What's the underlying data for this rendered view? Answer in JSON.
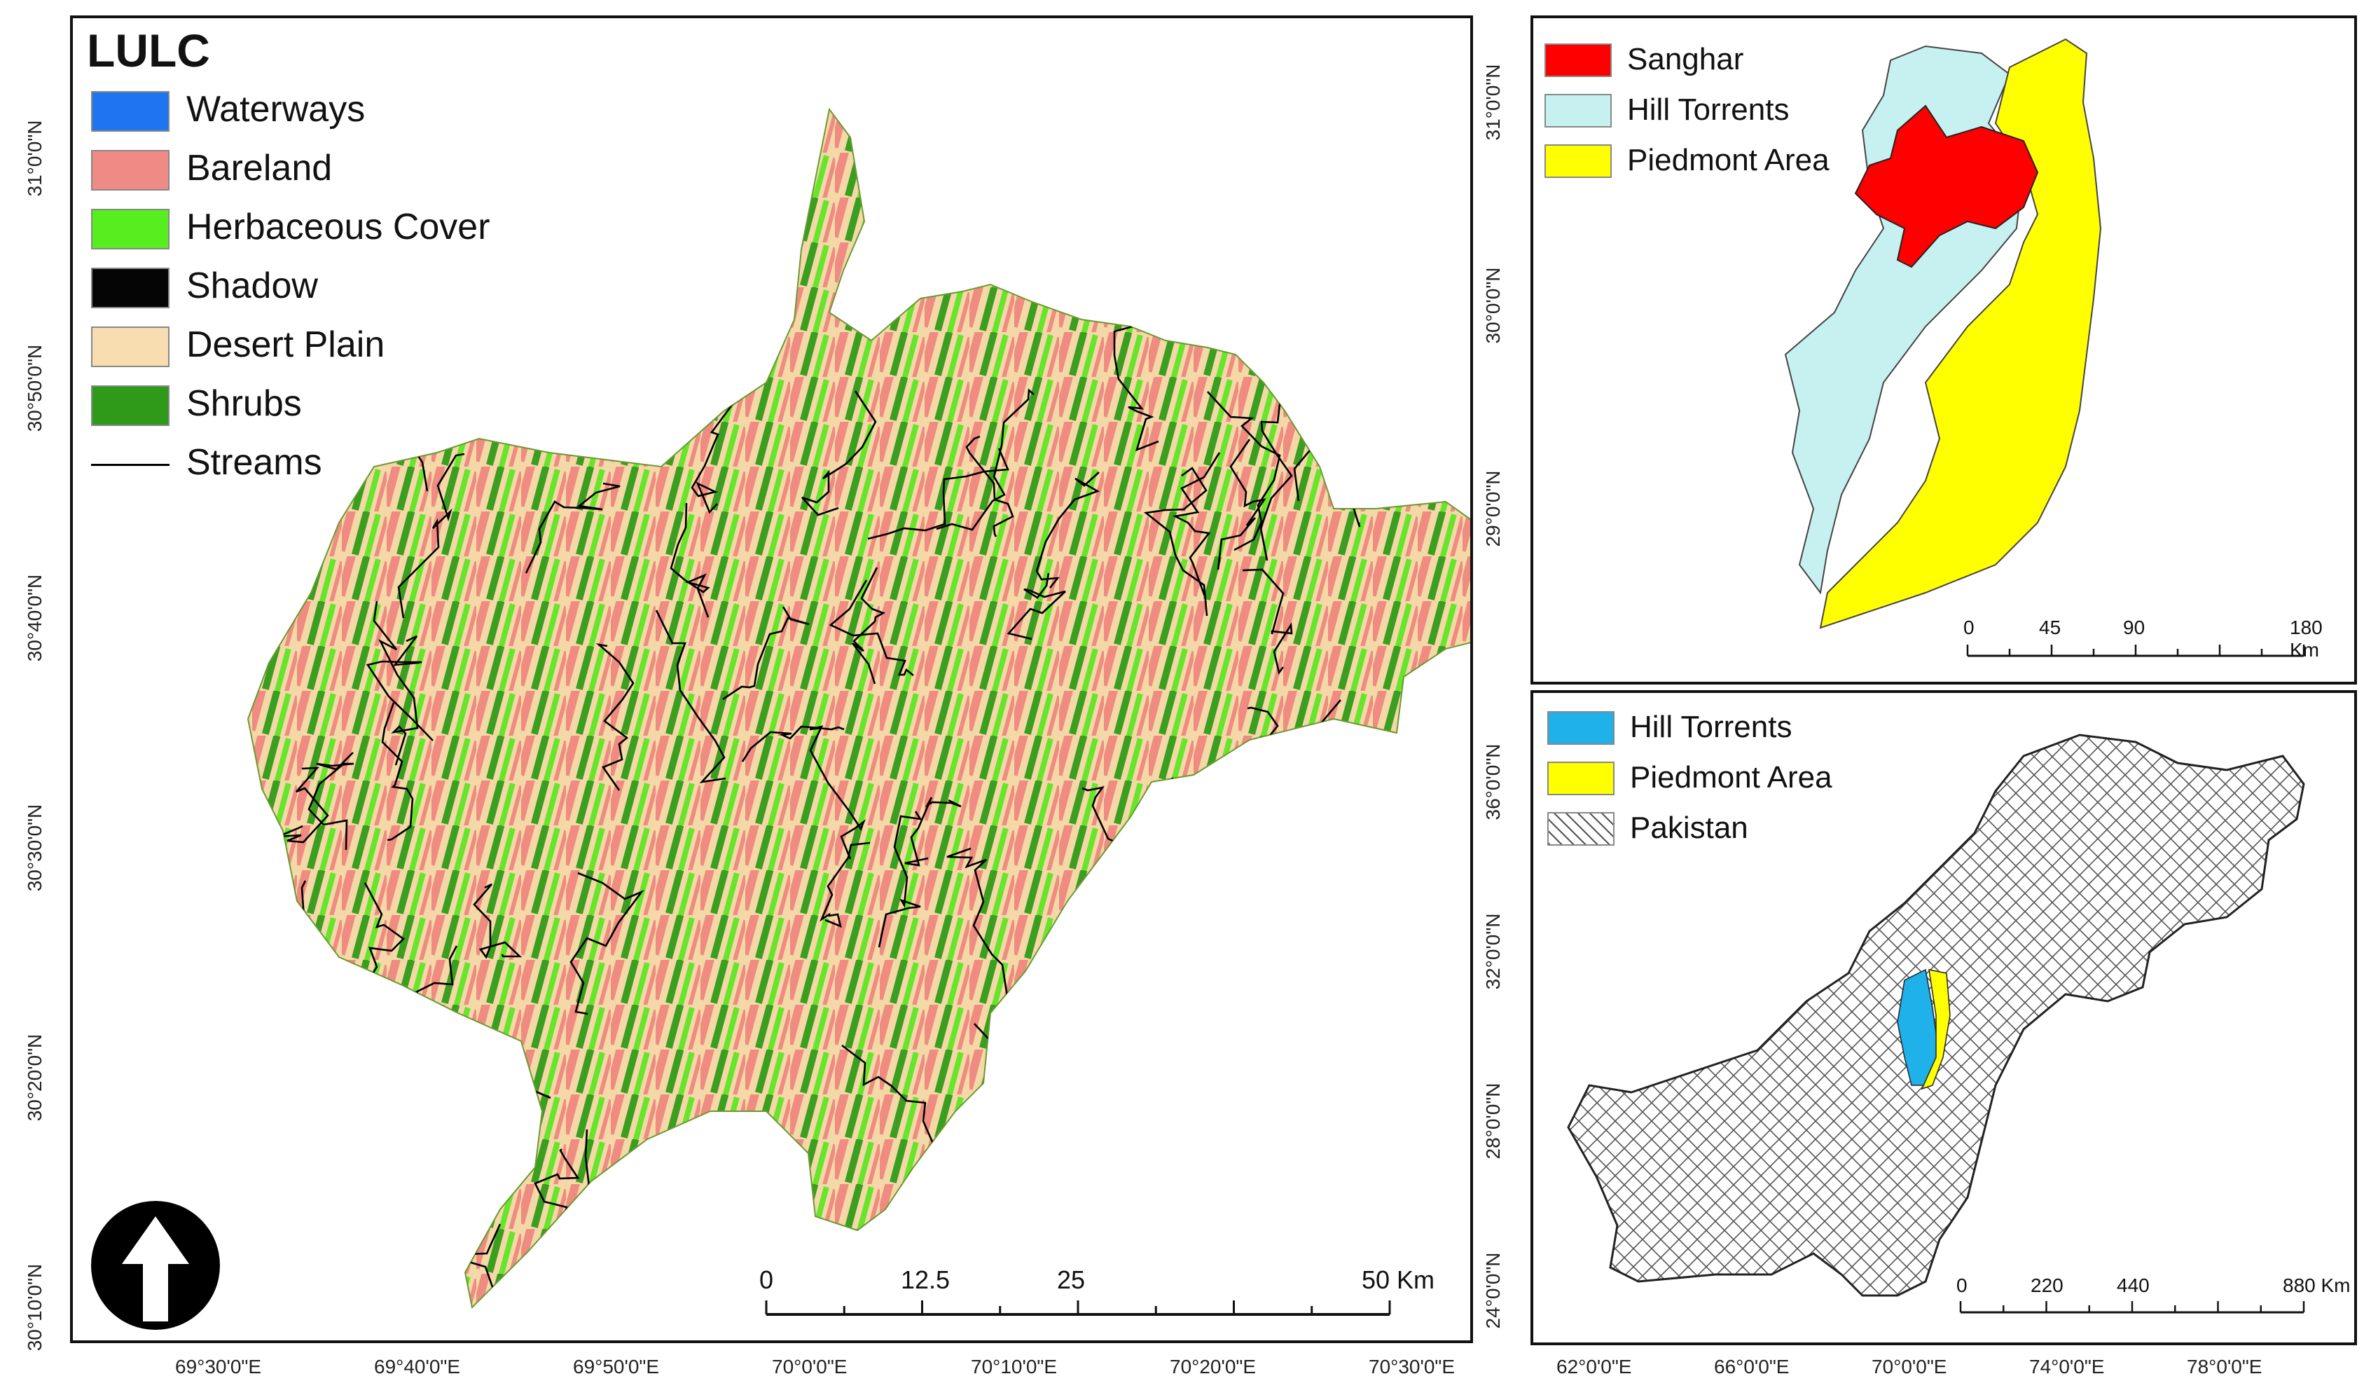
{
  "main_map": {
    "legend": {
      "title": "LULC",
      "items": [
        {
          "label": "Waterways",
          "color": "#1f74f0",
          "swatch": "fill"
        },
        {
          "label": "Bareland",
          "color": "#f08a84",
          "swatch": "fill"
        },
        {
          "label": "Herbaceous Cover",
          "color": "#56ee1f",
          "swatch": "fill"
        },
        {
          "label": "Shadow",
          "color": "#050505",
          "swatch": "fill"
        },
        {
          "label": "Desert Plain",
          "color": "#f7ddb0",
          "swatch": "fill"
        },
        {
          "label": "Shrubs",
          "color": "#2f9a1a",
          "swatch": "fill"
        },
        {
          "label": "Streams",
          "color": "#000000",
          "swatch": "line"
        }
      ]
    },
    "lat_labels": [
      "31°0'0\"N",
      "30°50'0\"N",
      "30°40'0\"N",
      "30°30'0\"N",
      "30°20'0\"N",
      "30°10'0\"N"
    ],
    "lon_labels": [
      "69°30'0\"E",
      "69°40'0\"E",
      "69°50'0\"E",
      "70°0'0\"E",
      "70°10'0\"E",
      "70°20'0\"E",
      "70°30'0\"E"
    ],
    "scale_bar": {
      "labels": [
        "0",
        "12.5",
        "25",
        "50 Km"
      ]
    },
    "north_arrow": "north-arrow-icon"
  },
  "inset_top": {
    "legend": [
      {
        "label": "Sanghar",
        "color": "#ff0000"
      },
      {
        "label": "Hill Torrents",
        "color": "#c6f1f0"
      },
      {
        "label": "Piedmont Area",
        "color": "#ffff00"
      }
    ],
    "lat_labels": [
      "31°0'0\"N",
      "30°0'0\"N",
      "29°0'0\"N"
    ],
    "scale_bar": {
      "labels": [
        "0",
        "45",
        "90",
        "180 Km"
      ]
    }
  },
  "inset_bottom": {
    "legend": [
      {
        "label": "Hill Torrents",
        "color": "#1fb2ea"
      },
      {
        "label": "Piedmont Area",
        "color": "#ffff00"
      },
      {
        "label": "Pakistan",
        "color": "#ffffff"
      }
    ],
    "lat_labels": [
      "36°0'0\"N",
      "32°0'0\"N",
      "28°0'0\"N",
      "24°0'0\"N"
    ],
    "lon_labels": [
      "62°0'0\"E",
      "66°0'0\"E",
      "70°0'0\"E",
      "74°0'0\"E",
      "78°0'0\"E"
    ],
    "scale_bar": {
      "labels": [
        "0",
        "220",
        "440",
        "880 Km"
      ]
    }
  }
}
